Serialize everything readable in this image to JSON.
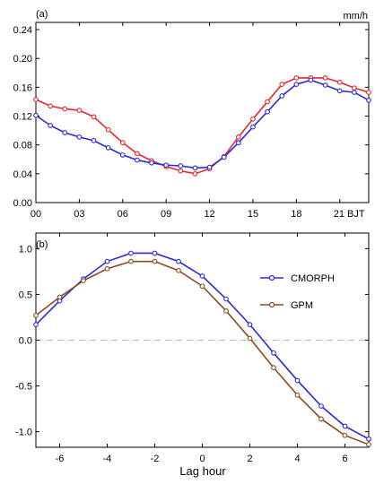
{
  "chart_data": [
    {
      "type": "line",
      "panel_label": "(a)",
      "unit_label": "mm/h",
      "xlabel": "",
      "ylabel": "",
      "xlim": [
        0,
        23
      ],
      "ylim": [
        0,
        0.25
      ],
      "x_ticks": [
        0,
        3,
        6,
        9,
        12,
        15,
        18,
        21
      ],
      "x_tick_labels": [
        "00",
        "03",
        "06",
        "09",
        "12",
        "15",
        "18",
        "21 BJT"
      ],
      "y_ticks": [
        0.0,
        0.04,
        0.08,
        0.12,
        0.16,
        0.2,
        0.24
      ],
      "y_tick_labels": [
        "0.00",
        "0.04",
        "0.08",
        "0.12",
        "0.16",
        "0.20",
        "0.24"
      ],
      "grid": false,
      "x": [
        0,
        1,
        2,
        3,
        4,
        5,
        6,
        7,
        8,
        9,
        10,
        11,
        12,
        13,
        14,
        15,
        16,
        17,
        18,
        19,
        20,
        21,
        22,
        23
      ],
      "series": [
        {
          "color": "#e8262b",
          "values": [
            0.143,
            0.134,
            0.13,
            0.128,
            0.119,
            0.101,
            0.083,
            0.068,
            0.058,
            0.05,
            0.044,
            0.04,
            0.047,
            0.064,
            0.091,
            0.116,
            0.14,
            0.164,
            0.173,
            0.173,
            0.173,
            0.167,
            0.159,
            0.153
          ]
        },
        {
          "color": "#2b2bd6",
          "values": [
            0.121,
            0.107,
            0.097,
            0.091,
            0.086,
            0.076,
            0.066,
            0.059,
            0.055,
            0.052,
            0.051,
            0.048,
            0.049,
            0.063,
            0.083,
            0.105,
            0.126,
            0.148,
            0.164,
            0.17,
            0.163,
            0.155,
            0.153,
            0.142
          ]
        }
      ]
    },
    {
      "type": "line",
      "panel_label": "(b)",
      "xlabel": "Lag hour",
      "ylabel": "",
      "xlim": [
        -7,
        7
      ],
      "ylim": [
        -1.17,
        1.17
      ],
      "x_ticks": [
        -6,
        -4,
        -2,
        0,
        2,
        4,
        6
      ],
      "x_tick_labels": [
        "-6",
        "-4",
        "-2",
        "0",
        "2",
        "4",
        "6"
      ],
      "y_ticks": [
        -1.0,
        -0.5,
        0.0,
        0.5,
        1.0
      ],
      "y_tick_labels": [
        "-1.0",
        "-0.5",
        "0.0",
        "0.5",
        "1.0"
      ],
      "grid": false,
      "reference_line_y": 0,
      "legend_position": "top-right",
      "x": [
        -7,
        -6,
        -5,
        -4,
        -3,
        -2,
        -1,
        0,
        1,
        2,
        3,
        4,
        5,
        6,
        7
      ],
      "series": [
        {
          "name": "CMORPH",
          "color": "#2b2bd6",
          "values": [
            0.17,
            0.43,
            0.67,
            0.86,
            0.95,
            0.95,
            0.86,
            0.7,
            0.45,
            0.17,
            -0.14,
            -0.44,
            -0.72,
            -0.94,
            -1.08
          ]
        },
        {
          "name": "GPM",
          "color": "#8b4a22",
          "values": [
            0.27,
            0.47,
            0.65,
            0.78,
            0.86,
            0.86,
            0.76,
            0.59,
            0.32,
            0.02,
            -0.3,
            -0.6,
            -0.86,
            -1.04,
            -1.14
          ]
        }
      ]
    }
  ]
}
